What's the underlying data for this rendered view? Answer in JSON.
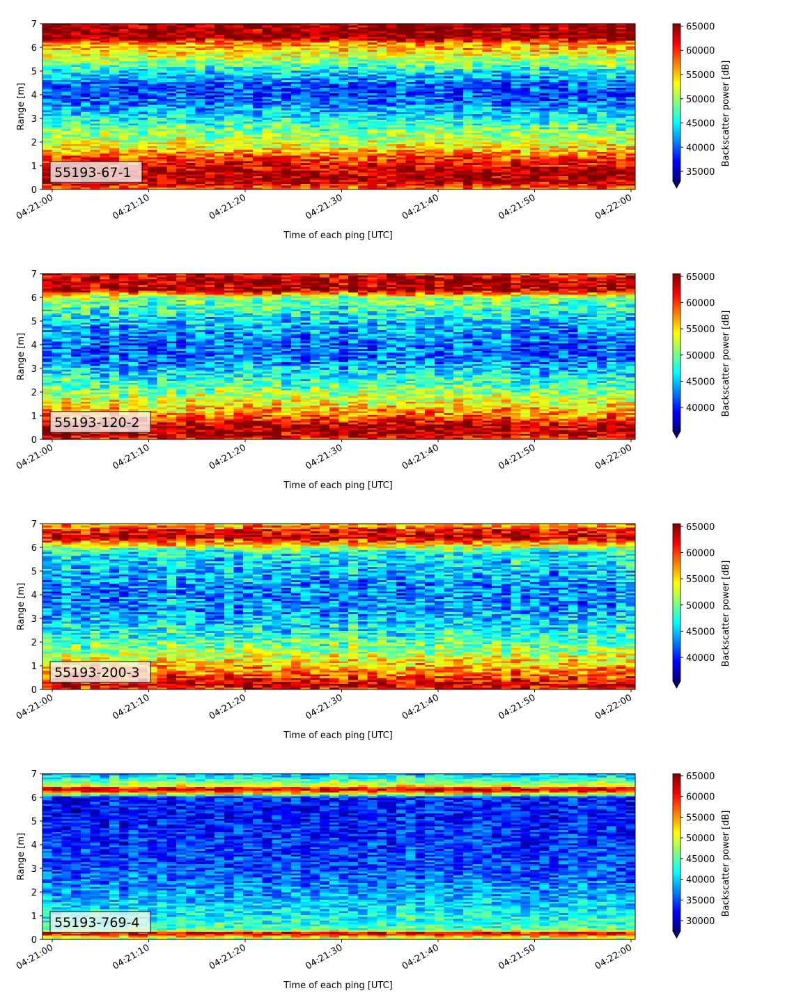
{
  "chart_data": [
    {
      "type": "heatmap",
      "label": "55193-67-1",
      "xlabel": "Time of each ping [UTC]",
      "ylabel": "Range [m]",
      "colorbar_label": "Backscatter power [dB]",
      "colormap": "jet",
      "x_ticks": [
        "04:21:00",
        "04:21:10",
        "04:21:20",
        "04:21:30",
        "04:21:40",
        "04:21:50",
        "04:22:00"
      ],
      "y_ticks": [
        0,
        1,
        2,
        3,
        4,
        5,
        6,
        7
      ],
      "ylim": [
        0,
        7
      ],
      "colorbar_ticks": [
        35000,
        40000,
        45000,
        50000,
        55000,
        60000,
        65000
      ],
      "clim": [
        33000,
        65500
      ],
      "range_profile": [
        [
          0.0,
          57000
        ],
        [
          0.3,
          64000
        ],
        [
          0.7,
          64000
        ],
        [
          1.3,
          60000
        ],
        [
          1.8,
          53000
        ],
        [
          2.5,
          49000
        ],
        [
          3.2,
          44000
        ],
        [
          3.9,
          39000
        ],
        [
          4.4,
          40000
        ],
        [
          5.0,
          45000
        ],
        [
          5.6,
          52000
        ],
        [
          6.2,
          57000
        ],
        [
          6.4,
          65000
        ],
        [
          7.0,
          65000
        ]
      ]
    },
    {
      "type": "heatmap",
      "label": "55193-120-2",
      "xlabel": "Time of each ping [UTC]",
      "ylabel": "Range [m]",
      "colorbar_label": "Backscatter power [dB]",
      "colormap": "jet",
      "x_ticks": [
        "04:21:00",
        "04:21:10",
        "04:21:20",
        "04:21:30",
        "04:21:40",
        "04:21:50",
        "04:22:00"
      ],
      "y_ticks": [
        0,
        1,
        2,
        3,
        4,
        5,
        6,
        7
      ],
      "ylim": [
        0,
        7
      ],
      "colorbar_ticks": [
        40000,
        45000,
        50000,
        55000,
        60000,
        65000
      ],
      "clim": [
        35500,
        65500
      ],
      "range_profile": [
        [
          0.0,
          60000
        ],
        [
          0.2,
          64000
        ],
        [
          0.6,
          64000
        ],
        [
          1.0,
          58000
        ],
        [
          1.8,
          52000
        ],
        [
          2.5,
          48000
        ],
        [
          3.3,
          43000
        ],
        [
          4.0,
          42000
        ],
        [
          4.6,
          44000
        ],
        [
          5.3,
          47000
        ],
        [
          6.0,
          51000
        ],
        [
          6.3,
          64000
        ],
        [
          6.8,
          64000
        ],
        [
          7.0,
          60000
        ]
      ]
    },
    {
      "type": "heatmap",
      "label": "55193-200-3",
      "xlabel": "Time of each ping [UTC]",
      "ylabel": "Range [m]",
      "colorbar_label": "Backscatter power [dB]",
      "colormap": "jet",
      "x_ticks": [
        "04:21:00",
        "04:21:10",
        "04:21:20",
        "04:21:30",
        "04:21:40",
        "04:21:50",
        "04:22:00"
      ],
      "y_ticks": [
        0,
        1,
        2,
        3,
        4,
        5,
        6,
        7
      ],
      "ylim": [
        0,
        7
      ],
      "colorbar_ticks": [
        40000,
        45000,
        50000,
        55000,
        60000,
        65000
      ],
      "clim": [
        35500,
        65500
      ],
      "range_profile": [
        [
          0.0,
          60000
        ],
        [
          0.2,
          64000
        ],
        [
          0.5,
          60000
        ],
        [
          1.0,
          56000
        ],
        [
          1.7,
          51000
        ],
        [
          2.5,
          47000
        ],
        [
          3.3,
          44000
        ],
        [
          4.2,
          43000
        ],
        [
          5.0,
          45000
        ],
        [
          5.8,
          47000
        ],
        [
          6.2,
          58000
        ],
        [
          6.4,
          64000
        ],
        [
          6.7,
          62000
        ],
        [
          7.0,
          55000
        ]
      ]
    },
    {
      "type": "heatmap",
      "label": "55193-769-4",
      "xlabel": "Time of each ping [UTC]",
      "ylabel": "Range [m]",
      "colorbar_label": "Backscatter power [dB]",
      "colormap": "jet",
      "x_ticks": [
        "04:21:00",
        "04:21:10",
        "04:21:20",
        "04:21:30",
        "04:21:40",
        "04:21:50",
        "04:22:00"
      ],
      "y_ticks": [
        0,
        1,
        2,
        3,
        4,
        5,
        6,
        7
      ],
      "ylim": [
        0,
        7
      ],
      "colorbar_ticks": [
        30000,
        35000,
        40000,
        45000,
        50000,
        55000,
        60000,
        65000
      ],
      "clim": [
        27500,
        65500
      ],
      "range_profile": [
        [
          0.0,
          45000
        ],
        [
          0.15,
          56000
        ],
        [
          0.25,
          64000
        ],
        [
          0.4,
          45000
        ],
        [
          1.0,
          42000
        ],
        [
          2.0,
          38000
        ],
        [
          3.0,
          35000
        ],
        [
          4.0,
          34000
        ],
        [
          5.0,
          33000
        ],
        [
          6.0,
          33000
        ],
        [
          6.2,
          56000
        ],
        [
          6.35,
          64000
        ],
        [
          6.5,
          50000
        ],
        [
          7.0,
          38000
        ]
      ]
    }
  ]
}
